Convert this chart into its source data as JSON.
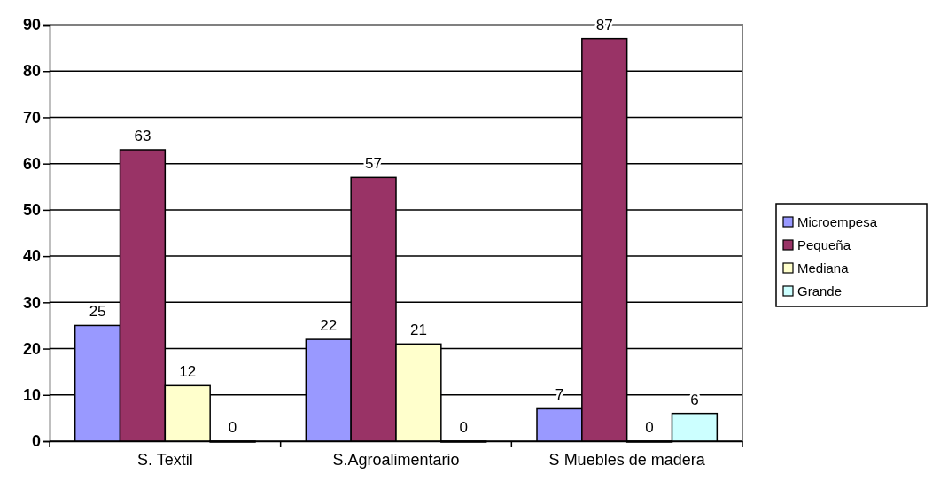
{
  "chart_data": {
    "type": "bar",
    "categories": [
      "S. Textil",
      "S.Agroalimentario",
      "S Muebles de madera"
    ],
    "series": [
      {
        "name": "Microempesa",
        "color": "#9999ff",
        "values": [
          25,
          22,
          7
        ]
      },
      {
        "name": "Pequeña",
        "color": "#993366",
        "values": [
          63,
          57,
          87
        ]
      },
      {
        "name": "Mediana",
        "color": "#ffffcc",
        "values": [
          12,
          21,
          0
        ]
      },
      {
        "name": "Grande",
        "color": "#ccffff",
        "values": [
          0,
          0,
          6
        ]
      }
    ],
    "ylim": [
      0,
      90
    ],
    "yticks": [
      0,
      10,
      20,
      30,
      40,
      50,
      60,
      70,
      80,
      90
    ],
    "grid": "y",
    "legend": "right",
    "data_labels": true
  }
}
